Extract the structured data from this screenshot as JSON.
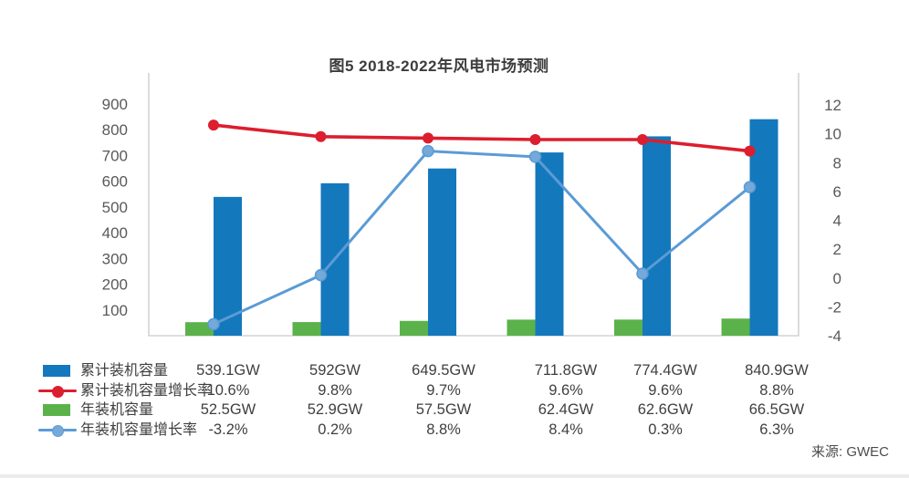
{
  "title": "图5 2018-2022年风电市场预测",
  "source": "来源: GWEC",
  "colors": {
    "cumulative_bar": "#1478bd",
    "cumulative_rate_line": "#dc1e2e",
    "annual_bar": "#5bb24b",
    "annual_rate_line": "#5b9bd5",
    "annual_rate_marker": "#74a9d9",
    "axis_line": "#c9c9c9",
    "tick_text": "#595959",
    "table_text": "#3f3f3f"
  },
  "chart_data": {
    "type": "combo-bar-line",
    "title": "图5 2018-2022年风电市场预测",
    "grid": false,
    "legend_position": "bottom-table",
    "left_axis": {
      "ticks": [
        100,
        200,
        300,
        400,
        500,
        600,
        700,
        800,
        900
      ],
      "min": 0,
      "max": 900
    },
    "right_axis": {
      "ticks": [
        -4,
        -2,
        0,
        2,
        4,
        6,
        8,
        10,
        12
      ],
      "min": -4,
      "max": 12
    },
    "series": [
      {
        "name": "累计装机容量",
        "type": "bar",
        "axis": "left",
        "unit": "GW",
        "color_key": "cumulative_bar",
        "values": [
          539.1,
          592,
          649.5,
          711.8,
          774.4,
          840.9
        ],
        "display": [
          "539.1GW",
          "592GW",
          "649.5GW",
          "711.8GW",
          "774.4GW",
          "840.9GW"
        ]
      },
      {
        "name": "累计装机容量增长率",
        "type": "line",
        "axis": "right",
        "unit": "%",
        "color_key": "cumulative_rate_line",
        "values": [
          10.6,
          9.8,
          9.7,
          9.6,
          9.6,
          8.8
        ],
        "display": [
          "10.6%",
          "9.8%",
          "9.7%",
          "9.6%",
          "9.6%",
          "8.8%"
        ]
      },
      {
        "name": "年装机容量",
        "type": "bar",
        "axis": "left",
        "unit": "GW",
        "color_key": "annual_bar",
        "values": [
          52.5,
          52.9,
          57.5,
          62.4,
          62.6,
          66.5
        ],
        "display": [
          "52.5GW",
          "52.9GW",
          "57.5GW",
          "62.4GW",
          "62.6GW",
          "66.5GW"
        ]
      },
      {
        "name": "年装机容量增长率",
        "type": "line",
        "axis": "right",
        "unit": "%",
        "color_key": "annual_rate_line",
        "values": [
          -3.2,
          0.2,
          8.8,
          8.4,
          0.3,
          6.3
        ],
        "display": [
          "-3.2%",
          "0.2%",
          "8.8%",
          "8.4%",
          "0.3%",
          "6.3%"
        ]
      }
    ]
  }
}
